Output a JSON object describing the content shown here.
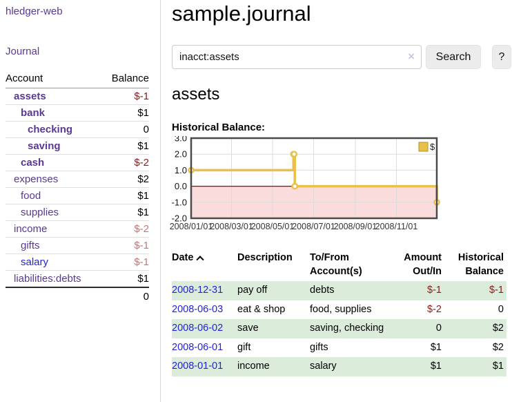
{
  "colors": {
    "accent_purple": "#5a3896",
    "link_blue": "#2222dd",
    "negative_strong": "#8b1a1a",
    "negative_pale": "#c07878",
    "row_green": "#dcecdb",
    "chart_line_gold": "#e8c04a",
    "chart_negative_area": "#fbdcdc",
    "chart_zero_line": "#a40000"
  },
  "sidebar": {
    "brand": "hledger-web",
    "journal_link": "Journal",
    "account_header": "Account",
    "balance_header": "Balance",
    "accounts": [
      {
        "label": "assets",
        "level": 1,
        "bold": true,
        "color": "purple",
        "balance": "$-1",
        "balance_tone": "neg-strong"
      },
      {
        "label": "bank",
        "level": 2,
        "bold": true,
        "color": "purple",
        "balance": "$1",
        "balance_tone": "pos"
      },
      {
        "label": "checking",
        "level": 3,
        "bold": true,
        "color": "purple",
        "balance": "0",
        "balance_tone": "pos"
      },
      {
        "label": "saving",
        "level": 3,
        "bold": true,
        "color": "purple",
        "balance": "$1",
        "balance_tone": "pos"
      },
      {
        "label": "cash",
        "level": 2,
        "bold": true,
        "color": "purple",
        "balance": "$-2",
        "balance_tone": "neg-strong"
      },
      {
        "label": "expenses",
        "level": 1,
        "bold": false,
        "color": "purple",
        "balance": "$2",
        "balance_tone": "pos"
      },
      {
        "label": "food",
        "level": 2,
        "bold": false,
        "color": "purple",
        "balance": "$1",
        "balance_tone": "pos"
      },
      {
        "label": "supplies",
        "level": 2,
        "bold": false,
        "color": "purple",
        "balance": "$1",
        "balance_tone": "pos"
      },
      {
        "label": "income",
        "level": 1,
        "bold": false,
        "color": "purple",
        "balance": "$-2",
        "balance_tone": "neg-pale"
      },
      {
        "label": "gifts",
        "level": 2,
        "bold": false,
        "color": "purple",
        "balance": "$-1",
        "balance_tone": "neg-pale"
      },
      {
        "label": "salary",
        "level": 2,
        "bold": false,
        "color": "blue",
        "balance": "$-1",
        "balance_tone": "neg-pale"
      },
      {
        "label": "liabilities:debts",
        "level": 1,
        "bold": false,
        "color": "purple",
        "balance": "$1",
        "balance_tone": "pos"
      }
    ],
    "total": "0"
  },
  "header": {
    "title": "sample.journal"
  },
  "search": {
    "value": "inacct:assets",
    "clear_icon": "×",
    "button_label": "Search",
    "help_label": "?"
  },
  "main": {
    "account_heading": "assets",
    "chart_label": "Historical Balance:"
  },
  "chart_data": {
    "type": "line",
    "style": "step",
    "title": "Historical Balance",
    "x_range": [
      "2008-01-01",
      "2008-12-31"
    ],
    "x_ticks": [
      "2008/01/01",
      "2008/03/01",
      "2008/05/01",
      "2008/07/01",
      "2008/09/01",
      "2008/11/01"
    ],
    "y_ticks": [
      3.0,
      2.0,
      1.0,
      0.0,
      -1.0,
      -2.0
    ],
    "ylim": [
      -2,
      3
    ],
    "grid": true,
    "legend_position": "top-right",
    "negative_region_color": "#fbdcdc",
    "zero_line_color": "#a40000",
    "series": [
      {
        "name": "$",
        "color": "#e8c04a",
        "points": [
          {
            "date": "2008-01-01",
            "value": 1
          },
          {
            "date": "2008-06-01",
            "value": 2
          },
          {
            "date": "2008-06-02",
            "value": 2
          },
          {
            "date": "2008-06-03",
            "value": 0
          },
          {
            "date": "2008-12-31",
            "value": -1
          }
        ]
      }
    ]
  },
  "register": {
    "columns": [
      {
        "label": "Date"
      },
      {
        "label": "Description"
      },
      {
        "label": "To/From Account(s)"
      },
      {
        "label": "Amount Out/In"
      },
      {
        "label": "Historical Balance"
      }
    ],
    "rows": [
      {
        "date": "2008-12-31",
        "description": "pay off",
        "accounts": "debts",
        "amount": "$-1",
        "amount_negative": true,
        "balance": "$-1",
        "balance_negative": true
      },
      {
        "date": "2008-06-03",
        "description": "eat & shop",
        "accounts": "food, supplies",
        "amount": "$-2",
        "amount_negative": true,
        "balance": "0",
        "balance_negative": false
      },
      {
        "date": "2008-06-02",
        "description": "save",
        "accounts": "saving, checking",
        "amount": "0",
        "amount_negative": false,
        "balance": "$2",
        "balance_negative": false
      },
      {
        "date": "2008-06-01",
        "description": "gift",
        "accounts": "gifts",
        "amount": "$1",
        "amount_negative": false,
        "balance": "$2",
        "balance_negative": false
      },
      {
        "date": "2008-01-01",
        "description": "income",
        "accounts": "salary",
        "amount": "$1",
        "amount_negative": false,
        "balance": "$1",
        "balance_negative": false
      }
    ]
  }
}
